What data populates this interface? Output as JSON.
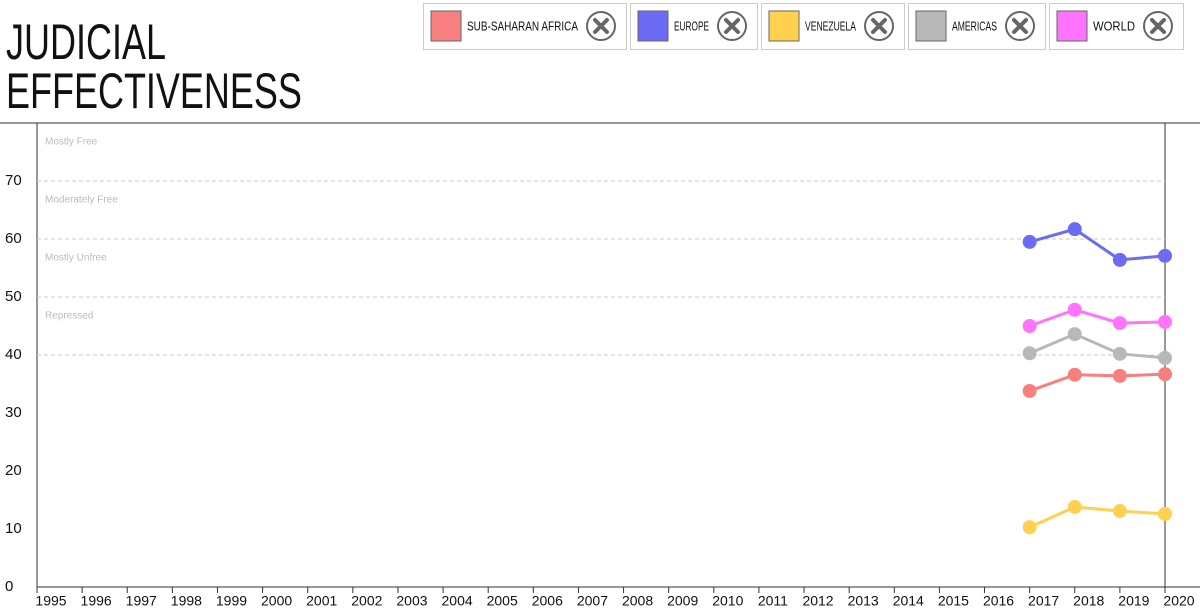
{
  "chart_data": {
    "type": "line",
    "title_lines": [
      "JUDICIAL",
      "EFFECTIVENESS"
    ],
    "x": [
      2017,
      2018,
      2019,
      2020
    ],
    "series": [
      {
        "name": "SUB-SAHARAN AFRICA",
        "color": "#f77f7f",
        "values": [
          33.8,
          36.6,
          36.4,
          36.7
        ]
      },
      {
        "name": "EUROPE",
        "color": "#6b6bf5",
        "values": [
          59.5,
          61.7,
          56.4,
          57.1
        ]
      },
      {
        "name": "VENEZUELA",
        "color": "#ffd14f",
        "values": [
          10.3,
          13.8,
          13.1,
          12.6
        ]
      },
      {
        "name": "AMERICAS",
        "color": "#b8b8b8",
        "values": [
          40.3,
          43.6,
          40.2,
          39.5
        ]
      },
      {
        "name": "WORLD",
        "color": "#ff73ff",
        "values": [
          45.0,
          47.8,
          45.5,
          45.7
        ]
      }
    ],
    "xlim": [
      1995,
      2020
    ],
    "xticks": [
      1995,
      1996,
      1997,
      1998,
      1999,
      2000,
      2001,
      2002,
      2003,
      2004,
      2005,
      2006,
      2007,
      2008,
      2009,
      2010,
      2011,
      2012,
      2013,
      2014,
      2015,
      2016,
      2017,
      2018,
      2019,
      2020
    ],
    "ylim": [
      0,
      80
    ],
    "yticks": [
      0,
      10,
      20,
      30,
      40,
      50,
      60,
      70
    ],
    "grid_lines": [
      40,
      50,
      60,
      70
    ],
    "bands": [
      {
        "label": "Mostly Free",
        "value": 80
      },
      {
        "label": "Moderately Free",
        "value": 70
      },
      {
        "label": "Mostly Unfree",
        "value": 60
      },
      {
        "label": "Repressed",
        "value": 50
      }
    ]
  }
}
